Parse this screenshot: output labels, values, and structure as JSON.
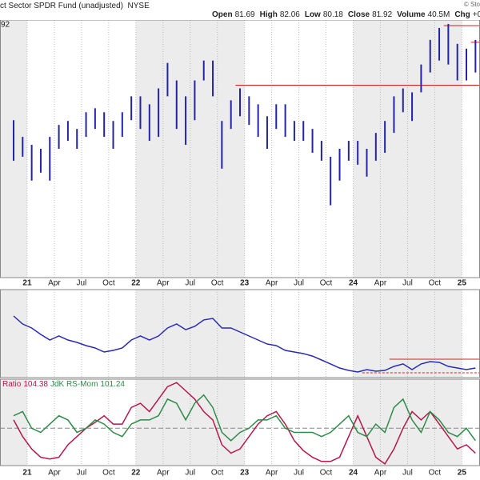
{
  "header": {
    "title": "ct Sector SPDR Fund (unadjusted)",
    "exchange": "NYSE",
    "credit": "© Sto",
    "quote": [
      {
        "label": "Open",
        "value": 81.69
      },
      {
        "label": "High",
        "value": 82.06
      },
      {
        "label": "Low",
        "value": 80.18
      },
      {
        "label": "Close",
        "value": 81.92
      },
      {
        "label": "Volume",
        "value": "40.5M"
      },
      {
        "label": "Chg",
        "value": "+0."
      }
    ]
  },
  "chart_data": [
    {
      "type": "ohlc",
      "label": "92",
      "color": "#2323a8",
      "level_color": "#d42020",
      "x": [
        "2020-11",
        "2020-12",
        "2021-01",
        "2021-02",
        "2021-03",
        "2021-04",
        "2021-05",
        "2021-06",
        "2021-07",
        "2021-08",
        "2021-09",
        "2021-10",
        "2021-11",
        "2021-12",
        "2022-01",
        "2022-02",
        "2022-03",
        "2022-04",
        "2022-05",
        "2022-06",
        "2022-07",
        "2022-08",
        "2022-09",
        "2022-10",
        "2022-11",
        "2022-12",
        "2023-01",
        "2023-02",
        "2023-03",
        "2023-04",
        "2023-05",
        "2023-06",
        "2023-07",
        "2023-08",
        "2023-09",
        "2023-10",
        "2023-11",
        "2023-12",
        "2024-01",
        "2024-02",
        "2024-03",
        "2024-04",
        "2024-05",
        "2024-06",
        "2024-07",
        "2024-08",
        "2024-09",
        "2024-10",
        "2024-11",
        "2024-12",
        "2025-01",
        "2025-02"
      ],
      "high": [
        74.4,
        72.3,
        71.3,
        70.8,
        72.3,
        73.8,
        74.3,
        73.3,
        75.4,
        75.9,
        75.4,
        74.3,
        75.4,
        77.4,
        77.4,
        76.4,
        78.4,
        81.6,
        79.4,
        77.4,
        79.4,
        81.9,
        81.9,
        74.3,
        76.9,
        78.4,
        77.4,
        76.4,
        74.9,
        76.4,
        76.4,
        74.3,
        74.3,
        73.3,
        71.8,
        69.8,
        70.8,
        71.8,
        71.8,
        70.8,
        72.8,
        74.3,
        77.4,
        78.4,
        77.9,
        81.4,
        84.5,
        86.0,
        86.5,
        84.0,
        83.4,
        84.5
      ],
      "low": [
        69.3,
        69.8,
        66.8,
        67.8,
        66.8,
        70.8,
        71.8,
        70.8,
        72.3,
        73.3,
        72.3,
        70.8,
        72.3,
        74.4,
        73.3,
        71.8,
        72.3,
        77.4,
        73.3,
        71.3,
        74.4,
        79.4,
        77.4,
        68.3,
        73.3,
        74.9,
        73.8,
        72.3,
        70.8,
        73.3,
        72.3,
        71.8,
        71.8,
        70.3,
        69.3,
        63.7,
        66.8,
        69.3,
        68.8,
        67.3,
        69.3,
        70.3,
        72.8,
        75.4,
        74.3,
        77.9,
        80.4,
        81.9,
        81.4,
        79.4,
        79.4,
        80.4
      ],
      "levels": [
        {
          "value": 78.8,
          "from": "2022-12"
        },
        {
          "value": 86.3,
          "from": "2024-11"
        },
        {
          "value": 84.2,
          "from": "2025-02"
        }
      ],
      "xlim": [
        "2020-10",
        "2025-03"
      ],
      "ylim": [
        54.6,
        87
      ],
      "xticks": [
        {
          "value": "2021-01",
          "label": "21"
        },
        {
          "value": "2021-04",
          "label": "Apr"
        },
        {
          "value": "2021-07",
          "label": "Jul"
        },
        {
          "value": "2021-10",
          "label": "Oct"
        },
        {
          "value": "2022-01",
          "label": "22"
        },
        {
          "value": "2022-04",
          "label": "Apr"
        },
        {
          "value": "2022-07",
          "label": "Jul"
        },
        {
          "value": "2022-10",
          "label": "Oct"
        },
        {
          "value": "2023-01",
          "label": "23"
        },
        {
          "value": "2023-04",
          "label": "Apr"
        },
        {
          "value": "2023-07",
          "label": "Jul"
        },
        {
          "value": "2023-10",
          "label": "Oct"
        },
        {
          "value": "2024-01",
          "label": "24"
        },
        {
          "value": "2024-04",
          "label": "Apr"
        },
        {
          "value": "2024-07",
          "label": "Jul"
        },
        {
          "value": "2024-10",
          "label": "Oct"
        },
        {
          "value": "2025-01",
          "label": "25"
        }
      ]
    },
    {
      "type": "line",
      "color": "#2a2ab4",
      "level_color": "#d42020",
      "x": [
        "2020-11",
        "2020-12",
        "2021-01",
        "2021-02",
        "2021-03",
        "2021-04",
        "2021-05",
        "2021-06",
        "2021-07",
        "2021-08",
        "2021-09",
        "2021-10",
        "2021-11",
        "2021-12",
        "2022-01",
        "2022-02",
        "2022-03",
        "2022-04",
        "2022-05",
        "2022-06",
        "2022-07",
        "2022-08",
        "2022-09",
        "2022-10",
        "2022-11",
        "2022-12",
        "2023-01",
        "2023-02",
        "2023-03",
        "2023-04",
        "2023-05",
        "2023-06",
        "2023-07",
        "2023-08",
        "2023-09",
        "2023-10",
        "2023-11",
        "2023-12",
        "2024-01",
        "2024-02",
        "2024-03",
        "2024-04",
        "2024-05",
        "2024-06",
        "2024-07",
        "2024-08",
        "2024-09",
        "2024-10",
        "2024-11",
        "2024-12",
        "2025-01",
        "2025-02"
      ],
      "values": [
        70,
        60.9,
        56.4,
        49.1,
        42.7,
        47.3,
        42.7,
        40,
        36.4,
        33.6,
        29.1,
        30.9,
        33.6,
        42.7,
        47.3,
        42.7,
        47.3,
        56.4,
        60.9,
        54.5,
        58.2,
        65.5,
        67.3,
        56.4,
        56.4,
        51.8,
        47.3,
        42.7,
        38.2,
        36.4,
        30.9,
        29.1,
        27.3,
        24.5,
        20,
        15.5,
        10.9,
        8.2,
        6.4,
        9.1,
        7.3,
        8.2,
        12.7,
        15.5,
        9.1,
        15.5,
        18.2,
        17.3,
        12.7,
        10.9,
        9.1,
        10.9
      ],
      "levels": [
        {
          "value": 20.9,
          "from": "2024-05",
          "style": "solid"
        },
        {
          "value": 5.5,
          "from": "2024-02",
          "style": "dashed"
        }
      ],
      "xlim": [
        "2020-10",
        "2025-03"
      ],
      "ylim": [
        0,
        100
      ]
    },
    {
      "type": "line",
      "reference": 100,
      "x": [
        "2020-11",
        "2020-12",
        "2021-01",
        "2021-02",
        "2021-03",
        "2021-04",
        "2021-05",
        "2021-06",
        "2021-07",
        "2021-08",
        "2021-09",
        "2021-10",
        "2021-11",
        "2021-12",
        "2022-01",
        "2022-02",
        "2022-03",
        "2022-04",
        "2022-05",
        "2022-06",
        "2022-07",
        "2022-08",
        "2022-09",
        "2022-10",
        "2022-11",
        "2022-12",
        "2023-01",
        "2023-02",
        "2023-03",
        "2023-04",
        "2023-05",
        "2023-06",
        "2023-07",
        "2023-08",
        "2023-09",
        "2023-10",
        "2023-11",
        "2023-12",
        "2024-01",
        "2024-02",
        "2024-03",
        "2024-04",
        "2024-05",
        "2024-06",
        "2024-07",
        "2024-08",
        "2024-09",
        "2024-10",
        "2024-11",
        "2024-12",
        "2025-01",
        "2025-02"
      ],
      "series": [
        {
          "name": "Ratio",
          "legend_value": 104.38,
          "color": "#b5174a",
          "values": [
            102.5,
            97.5,
            93.75,
            91.25,
            90.75,
            91.25,
            95,
            97.5,
            100,
            101.75,
            103.75,
            101.25,
            101.25,
            106.25,
            107.5,
            105,
            108.75,
            112.5,
            113.75,
            111.25,
            108.75,
            105,
            102.5,
            95,
            92.5,
            93.75,
            97.5,
            101.25,
            103.75,
            105,
            101.25,
            96.25,
            93.25,
            91.25,
            90,
            90,
            91.25,
            97.5,
            103.75,
            97.5,
            91.25,
            89.25,
            93.75,
            100,
            105,
            102.5,
            105,
            101.25,
            97.5,
            93.75,
            95,
            92.5
          ]
        },
        {
          "name": "JdK RS-Mom",
          "legend_value": 101.24,
          "color": "#2e8b47",
          "values": [
            103.75,
            105,
            100,
            98.75,
            101.25,
            103.75,
            102.5,
            98.75,
            100,
            102.5,
            101.25,
            98.75,
            97.5,
            101.25,
            102.5,
            102.5,
            103.75,
            108.75,
            107.5,
            102.5,
            107.5,
            110,
            106.25,
            98.75,
            96.25,
            98.75,
            100,
            102.5,
            102.5,
            103.75,
            100,
            98.75,
            98.75,
            98.75,
            97.5,
            98.75,
            101.25,
            103.75,
            98.75,
            97.5,
            101.25,
            98.75,
            106.25,
            108.75,
            102.5,
            98.75,
            105,
            102.5,
            98.75,
            97.5,
            100,
            96.25
          ]
        }
      ],
      "xlim": [
        "2020-10",
        "2025-03"
      ],
      "ylim": [
        88.75,
        114.75
      ],
      "xticks": [
        {
          "value": "2021-01",
          "label": "21"
        },
        {
          "value": "2021-04",
          "label": "Apr"
        },
        {
          "value": "2021-07",
          "label": "Jul"
        },
        {
          "value": "2021-10",
          "label": "Oct"
        },
        {
          "value": "2022-01",
          "label": "22"
        },
        {
          "value": "2022-04",
          "label": "Apr"
        },
        {
          "value": "2022-07",
          "label": "Jul"
        },
        {
          "value": "2022-10",
          "label": "Oct"
        },
        {
          "value": "2023-01",
          "label": "23"
        },
        {
          "value": "2023-04",
          "label": "Apr"
        },
        {
          "value": "2023-07",
          "label": "Jul"
        },
        {
          "value": "2023-10",
          "label": "Oct"
        },
        {
          "value": "2024-01",
          "label": "24"
        },
        {
          "value": "2024-04",
          "label": "Apr"
        },
        {
          "value": "2024-07",
          "label": "Jul"
        },
        {
          "value": "2024-10",
          "label": "Oct"
        },
        {
          "value": "2025-01",
          "label": "25"
        }
      ]
    }
  ]
}
